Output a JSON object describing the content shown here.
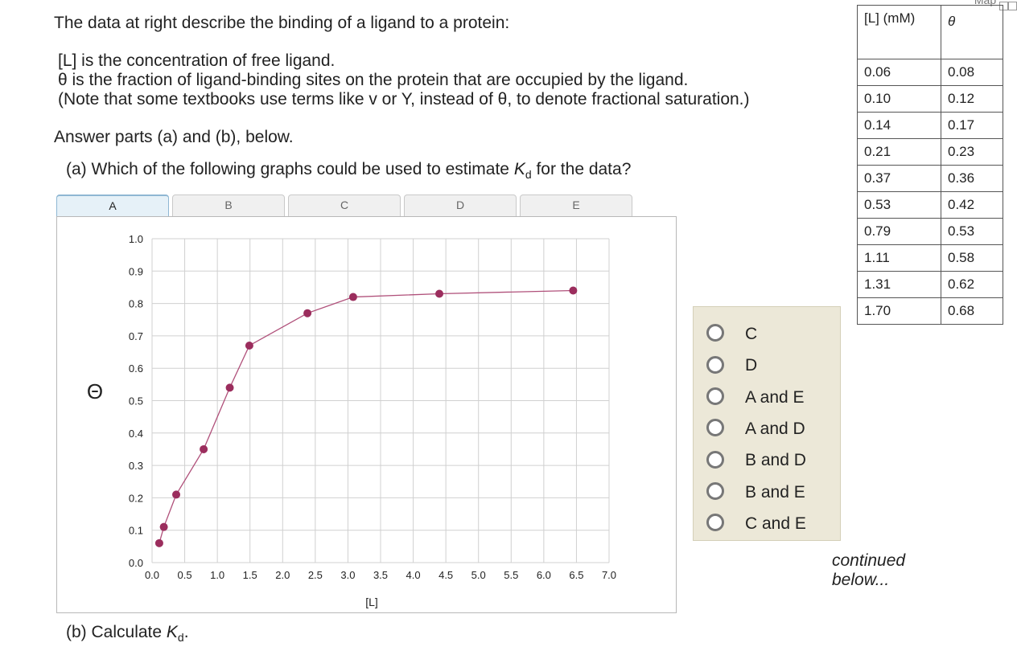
{
  "corner": {
    "label": "Map"
  },
  "question": {
    "intro": "The data at right describe the binding of a ligand to a protein:",
    "def_L": "[L] is the concentration of free ligand.",
    "def_theta": "θ is the fraction of ligand-binding sites on the protein that are occupied by the ligand.",
    "def_note": "(Note that some textbooks use terms like v or Y, instead of θ, to denote fractional saturation.)",
    "instruction": "Answer parts (a) and (b), below.",
    "part_a_prefix": "(a) Which of the following graphs could be used to estimate ",
    "part_a_k": "K",
    "part_a_sub": "d",
    "part_a_suffix": " for the data?",
    "part_b_prefix": "(b) Calculate ",
    "part_b_k": "K",
    "part_b_sub": "d",
    "part_b_suffix": ".",
    "continued": "continued below..."
  },
  "tabs": [
    {
      "label": "A",
      "active": true
    },
    {
      "label": "B",
      "active": false
    },
    {
      "label": "C",
      "active": false
    },
    {
      "label": "D",
      "active": false
    },
    {
      "label": "E",
      "active": false
    }
  ],
  "table": {
    "header_col1": "[L] (mM)",
    "header_col2": "θ",
    "rows": [
      [
        "0.06",
        "0.08"
      ],
      [
        "0.10",
        "0.12"
      ],
      [
        "0.14",
        "0.17"
      ],
      [
        "0.21",
        "0.23"
      ],
      [
        "0.37",
        "0.36"
      ],
      [
        "0.53",
        "0.42"
      ],
      [
        "0.79",
        "0.53"
      ],
      [
        "1.11",
        "0.58"
      ],
      [
        "1.31",
        "0.62"
      ],
      [
        "1.70",
        "0.68"
      ]
    ]
  },
  "options": [
    {
      "label": "C"
    },
    {
      "label": "D"
    },
    {
      "label": "A and E"
    },
    {
      "label": "A and D"
    },
    {
      "label": "B and D"
    },
    {
      "label": "B and E"
    },
    {
      "label": "C and E"
    }
  ],
  "chart_data": {
    "type": "line",
    "xlabel": "[L]",
    "ylabel": "Θ",
    "xlim": [
      0,
      7.0
    ],
    "ylim": [
      0,
      1.0
    ],
    "xticks": [
      "0.0",
      "0.5",
      "1.0",
      "1.5",
      "2.0",
      "2.5",
      "3.0",
      "3.5",
      "4.0",
      "4.5",
      "5.0",
      "5.5",
      "6.0",
      "6.5",
      "7.0"
    ],
    "yticks": [
      "0.0",
      "0.1",
      "0.2",
      "0.3",
      "0.4",
      "0.5",
      "0.6",
      "0.7",
      "0.8",
      "0.9",
      "1.0"
    ],
    "grid": true,
    "color": "#b0507a",
    "marker_color": "#9b2d5d",
    "x": [
      0.11,
      0.18,
      0.37,
      0.79,
      1.19,
      1.49,
      2.38,
      3.08,
      4.4,
      6.45
    ],
    "y": [
      0.06,
      0.11,
      0.21,
      0.35,
      0.54,
      0.67,
      0.77,
      0.82,
      0.83,
      0.84
    ]
  }
}
